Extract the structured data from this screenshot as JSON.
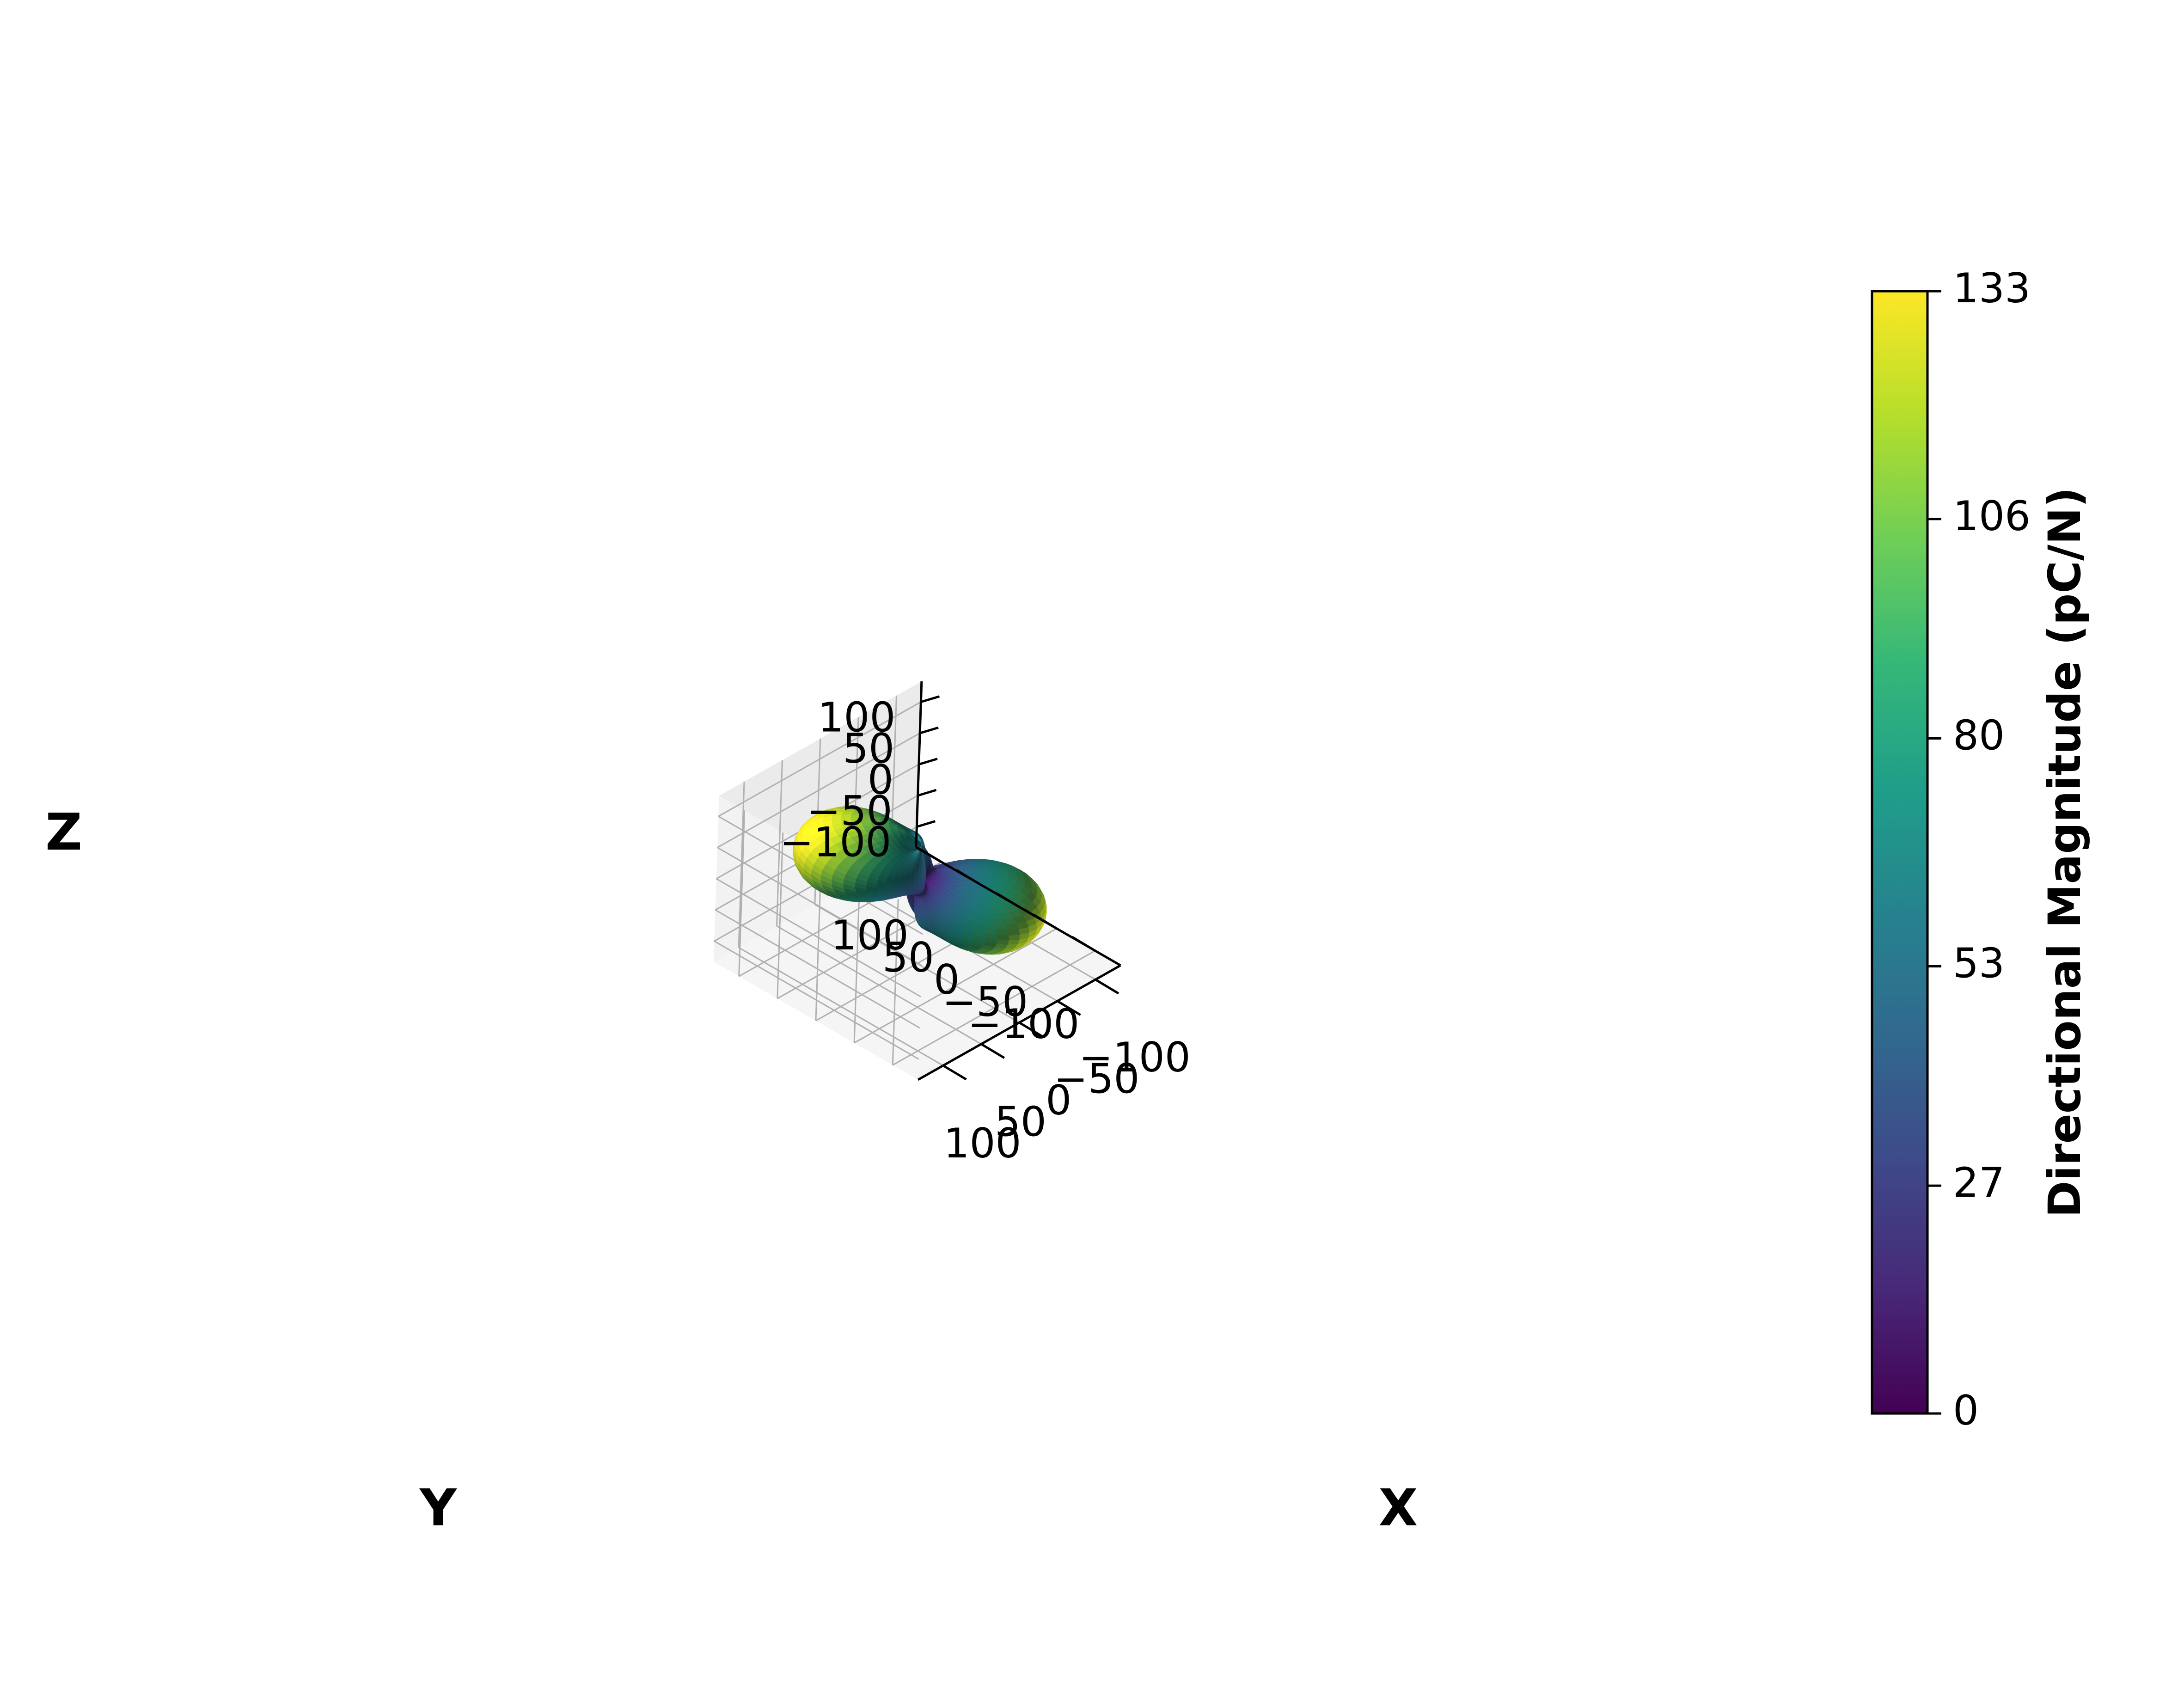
{
  "chart_data": {
    "type": "3d-surface",
    "xlabel": "X",
    "ylabel": "Y",
    "zlabel": "Z",
    "x_ticks": [
      -100,
      -50,
      0,
      50,
      100
    ],
    "y_ticks": [
      -100,
      -50,
      0,
      50,
      100
    ],
    "z_ticks": [
      -100,
      -50,
      0,
      50,
      100
    ],
    "x_tick_labels": [
      "−100",
      "−50",
      "0",
      "50",
      "100"
    ],
    "y_tick_labels": [
      "−100",
      "−50",
      "0",
      "50",
      "100"
    ],
    "z_tick_labels": [
      "−100",
      "−50",
      "0",
      "50",
      "100"
    ],
    "xlim": [
      -133,
      133
    ],
    "ylim": [
      -133,
      133
    ],
    "zlim": [
      -133,
      133
    ],
    "view": {
      "elev": 30,
      "azim": 45
    },
    "grid": true,
    "colormap": "viridis",
    "colorbar": {
      "label": "Directional Magnitude (pC/N)",
      "min": 0,
      "max": 133,
      "ticks": [
        0,
        27,
        53,
        80,
        106,
        133
      ],
      "tick_labels": [
        "0",
        "27",
        "53",
        "80",
        "106",
        "133"
      ],
      "placement": "right"
    },
    "surface": {
      "description_of_shape": "two-lobe directional surface along one diagonal axis with small minor lobes near origin",
      "max_magnitude": 133,
      "major_lobe_direction": {
        "theta_deg": 55,
        "phi_deg": 45
      }
    }
  },
  "colors": {
    "viridis": [
      "#440154",
      "#482878",
      "#3e4989",
      "#31688e",
      "#26828e",
      "#1f9e89",
      "#35b779",
      "#6ece58",
      "#b5de2b",
      "#fde725"
    ],
    "pane_left": "#ebebeb",
    "pane_right": "#f2f2f2",
    "pane_floor": "#f5f5f5",
    "grid": "#b0b0b0"
  }
}
